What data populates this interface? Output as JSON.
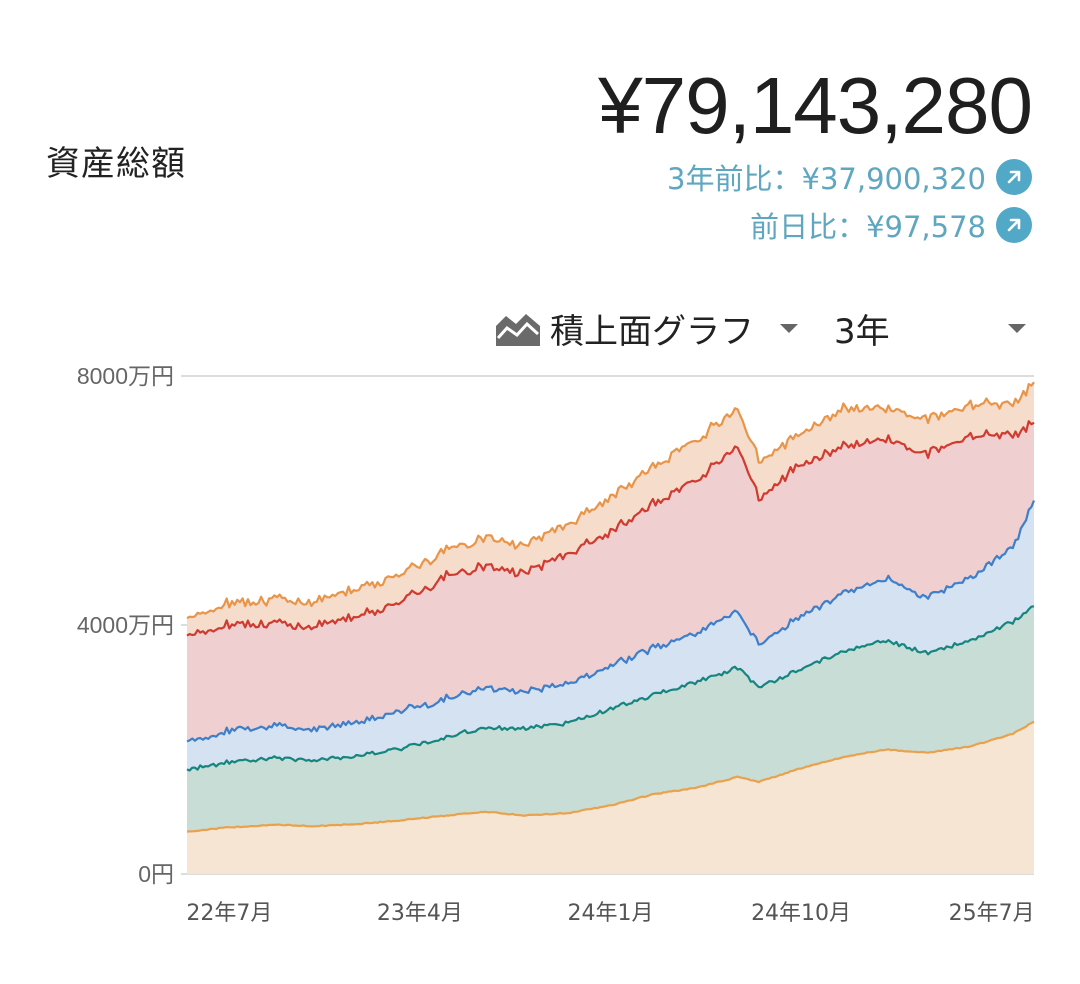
{
  "header": {
    "title": "資産総額",
    "total": "¥79,143,280",
    "change_3y": "3年前比：¥37,900,320",
    "change_1d": "前日比：¥97,578"
  },
  "controls": {
    "chart_type": "積上面グラフ",
    "period": "3年"
  },
  "colors": {
    "accent": "#52a8c7",
    "series": [
      "#e8a24e",
      "#16857f",
      "#3e7fca",
      "#cf3b2f",
      "#e8954a"
    ],
    "fills": [
      "#f5e5d2",
      "#c9ddd7",
      "#d4e2f1",
      "#f0cfd1",
      "#f6dccb"
    ]
  },
  "chart_data": {
    "type": "area",
    "stacked": true,
    "x_ticks": [
      "22年7月",
      "23年4月",
      "24年1月",
      "24年10月",
      "25年7月"
    ],
    "y_ticks": [
      "0円",
      "4000万円",
      "8000万円"
    ],
    "ylim": [
      0,
      8000
    ],
    "y_unit": "万円",
    "grid": true,
    "x": [
      "2022-05",
      "2022-07",
      "2022-09",
      "2022-11",
      "2023-01",
      "2023-03",
      "2023-05",
      "2023-07",
      "2023-09",
      "2023-11",
      "2024-01",
      "2024-03",
      "2024-05",
      "2024-07",
      "2024-08",
      "2024-10",
      "2024-12",
      "2025-02",
      "2025-04",
      "2025-06",
      "2025-08",
      "2025-09"
    ],
    "series": [
      {
        "values": [
          680,
          750,
          790,
          770,
          800,
          860,
          930,
          1000,
          940,
          980,
          1100,
          1280,
          1380,
          1560,
          1480,
          1700,
          1880,
          2000,
          1950,
          2050,
          2250,
          2450
        ]
      },
      {
        "values": [
          1000,
          1050,
          1080,
          1050,
          1100,
          1150,
          1250,
          1350,
          1400,
          1450,
          1550,
          1600,
          1700,
          1750,
          1520,
          1600,
          1700,
          1750,
          1600,
          1700,
          1800,
          1850
        ]
      },
      {
        "values": [
          450,
          500,
          520,
          500,
          550,
          600,
          620,
          650,
          600,
          620,
          700,
          750,
          800,
          900,
          700,
          850,
          950,
          1000,
          900,
          1000,
          1200,
          1700
        ]
      },
      {
        "values": [
          1700,
          1700,
          1650,
          1650,
          1700,
          1750,
          1950,
          1950,
          1900,
          2100,
          2150,
          2300,
          2450,
          2650,
          2350,
          2450,
          2350,
          2250,
          2300,
          2300,
          1800,
          1250
        ]
      },
      {
        "values": [
          280,
          350,
          380,
          400,
          450,
          450,
          420,
          450,
          450,
          480,
          550,
          600,
          650,
          600,
          600,
          500,
          600,
          500,
          550,
          500,
          500,
          650
        ]
      }
    ]
  }
}
